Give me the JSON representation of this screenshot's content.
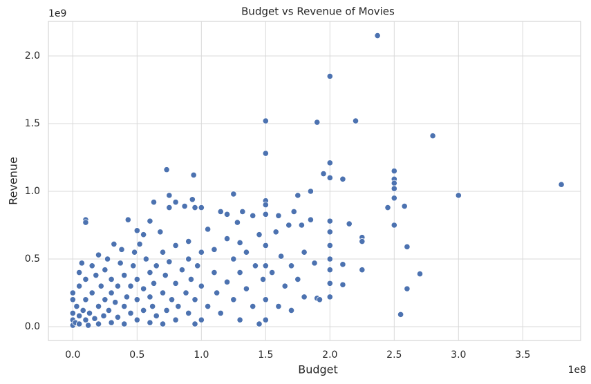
{
  "chart_data": {
    "type": "scatter",
    "title": "Budget vs Revenue of Movies",
    "x_label": "Budget",
    "y_label": "Revenue",
    "x_offset_label": "1e8",
    "y_offset_label": "1e9",
    "xlim": [
      -0.19,
      3.95
    ],
    "ylim": [
      -0.102,
      2.255
    ],
    "xticks": [
      {
        "value": 0,
        "label": "0.0"
      },
      {
        "value": 0.5,
        "label": "0.5"
      },
      {
        "value": 1,
        "label": "1.0"
      },
      {
        "value": 1.5,
        "label": "1.5"
      },
      {
        "value": 2,
        "label": "2.0"
      },
      {
        "value": 2.5,
        "label": "2.5"
      },
      {
        "value": 3,
        "label": "3.0"
      },
      {
        "value": 3.5,
        "label": "3.5"
      }
    ],
    "yticks": [
      {
        "value": 0,
        "label": "0.0"
      },
      {
        "value": 0.5,
        "label": "0.5"
      },
      {
        "value": 1,
        "label": "1.0"
      },
      {
        "value": 1.5,
        "label": "1.5"
      },
      {
        "value": 2,
        "label": "2.0"
      }
    ],
    "grid": true,
    "color": "#4c72b0",
    "x": [
      2.37,
      2.0,
      1.5,
      1.9,
      2.2,
      2.8,
      1.5,
      0.73,
      0.94,
      2.0,
      1.95,
      2.5,
      2.0,
      2.1,
      3.8,
      3.0,
      2.5,
      2.5,
      2.5,
      2.45,
      2.5,
      2.58,
      2.5,
      2.15,
      2.25,
      2.25,
      2.6,
      2.25,
      2.1,
      2.7,
      2.6,
      2.55,
      2.1,
      0.1,
      0.1,
      0.75,
      0.93,
      1.25,
      1.85,
      1.75,
      0.63,
      0.8,
      0,
      0,
      0,
      0,
      0,
      0.02,
      0.03,
      0.05,
      0.05,
      0.05,
      0.05,
      0.07,
      0.08,
      0.1,
      0.1,
      0.1,
      0.12,
      0.13,
      0.15,
      0.15,
      0.17,
      0.18,
      0.2,
      0.2,
      0.2,
      0.22,
      0.24,
      0.25,
      0.25,
      0.27,
      0.28,
      0.3,
      0.3,
      0.3,
      0.32,
      0.33,
      0.35,
      0.35,
      0.37,
      0.38,
      0.4,
      0.4,
      0.4,
      0.42,
      0.43,
      0.45,
      0.45,
      0.47,
      0.48,
      0.5,
      0.5,
      0.5,
      0.5,
      0.52,
      0.55,
      0.55,
      0.55,
      0.57,
      0.6,
      0.6,
      0.6,
      0.6,
      0.62,
      0.63,
      0.65,
      0.65,
      0.68,
      0.7,
      0.7,
      0.7,
      0.72,
      0.73,
      0.75,
      0.75,
      0.77,
      0.8,
      0.8,
      0.8,
      0.82,
      0.85,
      0.87,
      0.88,
      0.9,
      0.9,
      0.9,
      0.92,
      0.95,
      0.95,
      0.95,
      0.97,
      1.0,
      1.0,
      1.0,
      1.0,
      1.05,
      1.05,
      1.1,
      1.1,
      1.12,
      1.15,
      1.15,
      1.2,
      1.2,
      1.2,
      1.25,
      1.25,
      1.28,
      1.3,
      1.3,
      1.3,
      1.32,
      1.35,
      1.35,
      1.4,
      1.4,
      1.42,
      1.45,
      1.45,
      1.48,
      1.5,
      1.5,
      1.5,
      1.5,
      1.5,
      1.5,
      1.5,
      1.55,
      1.58,
      1.6,
      1.6,
      1.62,
      1.65,
      1.68,
      1.7,
      1.7,
      1.72,
      1.75,
      1.78,
      1.8,
      1.8,
      1.85,
      1.88,
      1.9,
      1.92,
      2.0,
      2.0,
      2.0,
      2.0,
      2.0,
      2.0,
      2.0
    ],
    "values": [
      2.15,
      1.85,
      1.52,
      1.51,
      1.52,
      1.41,
      1.28,
      1.16,
      1.12,
      1.21,
      1.13,
      1.15,
      1.1,
      1.09,
      1.05,
      0.97,
      1.09,
      1.06,
      1.02,
      0.88,
      0.95,
      0.89,
      0.75,
      0.76,
      0.66,
      0.63,
      0.59,
      0.42,
      0.46,
      0.39,
      0.28,
      0.09,
      0.31,
      0.79,
      0.77,
      0.97,
      0.94,
      0.98,
      1.0,
      0.97,
      0.92,
      0.92,
      0.01,
      0.05,
      0.1,
      0.2,
      0.25,
      0.03,
      0.15,
      0.02,
      0.08,
      0.3,
      0.4,
      0.47,
      0.12,
      0.05,
      0.2,
      0.35,
      0.01,
      0.1,
      0.25,
      0.45,
      0.06,
      0.38,
      0.15,
      0.02,
      0.53,
      0.3,
      0.08,
      0.2,
      0.42,
      0.5,
      0.12,
      0.03,
      0.25,
      0.35,
      0.61,
      0.18,
      0.07,
      0.3,
      0.47,
      0.57,
      0.02,
      0.15,
      0.38,
      0.22,
      0.79,
      0.1,
      0.3,
      0.45,
      0.55,
      0.05,
      0.2,
      0.35,
      0.71,
      0.61,
      0.12,
      0.68,
      0.28,
      0.5,
      0.03,
      0.22,
      0.4,
      0.78,
      0.15,
      0.32,
      0.45,
      0.08,
      0.7,
      0.25,
      0.02,
      0.55,
      0.38,
      0.12,
      0.48,
      0.88,
      0.2,
      0.05,
      0.32,
      0.6,
      0.15,
      0.42,
      0.89,
      0.25,
      0.1,
      0.5,
      0.63,
      0.35,
      0.02,
      0.2,
      0.88,
      0.45,
      0.05,
      0.3,
      0.55,
      0.88,
      0.72,
      0.15,
      0.4,
      0.57,
      0.25,
      0.85,
      0.1,
      0.65,
      0.33,
      0.83,
      0.5,
      0.2,
      0.77,
      0.05,
      0.62,
      0.4,
      0.85,
      0.28,
      0.55,
      0.82,
      0.15,
      0.45,
      0.68,
      0.02,
      0.35,
      0.93,
      0.9,
      0.83,
      0.6,
      0.45,
      0.2,
      0.05,
      0.4,
      0.7,
      0.15,
      0.82,
      0.52,
      0.3,
      0.75,
      0.45,
      0.12,
      0.85,
      0.35,
      0.75,
      0.55,
      0.22,
      0.79,
      0.47,
      0.21,
      0.2,
      0.78,
      0.7,
      0.6,
      0.5,
      0.42,
      0.32,
      0.22
    ]
  }
}
